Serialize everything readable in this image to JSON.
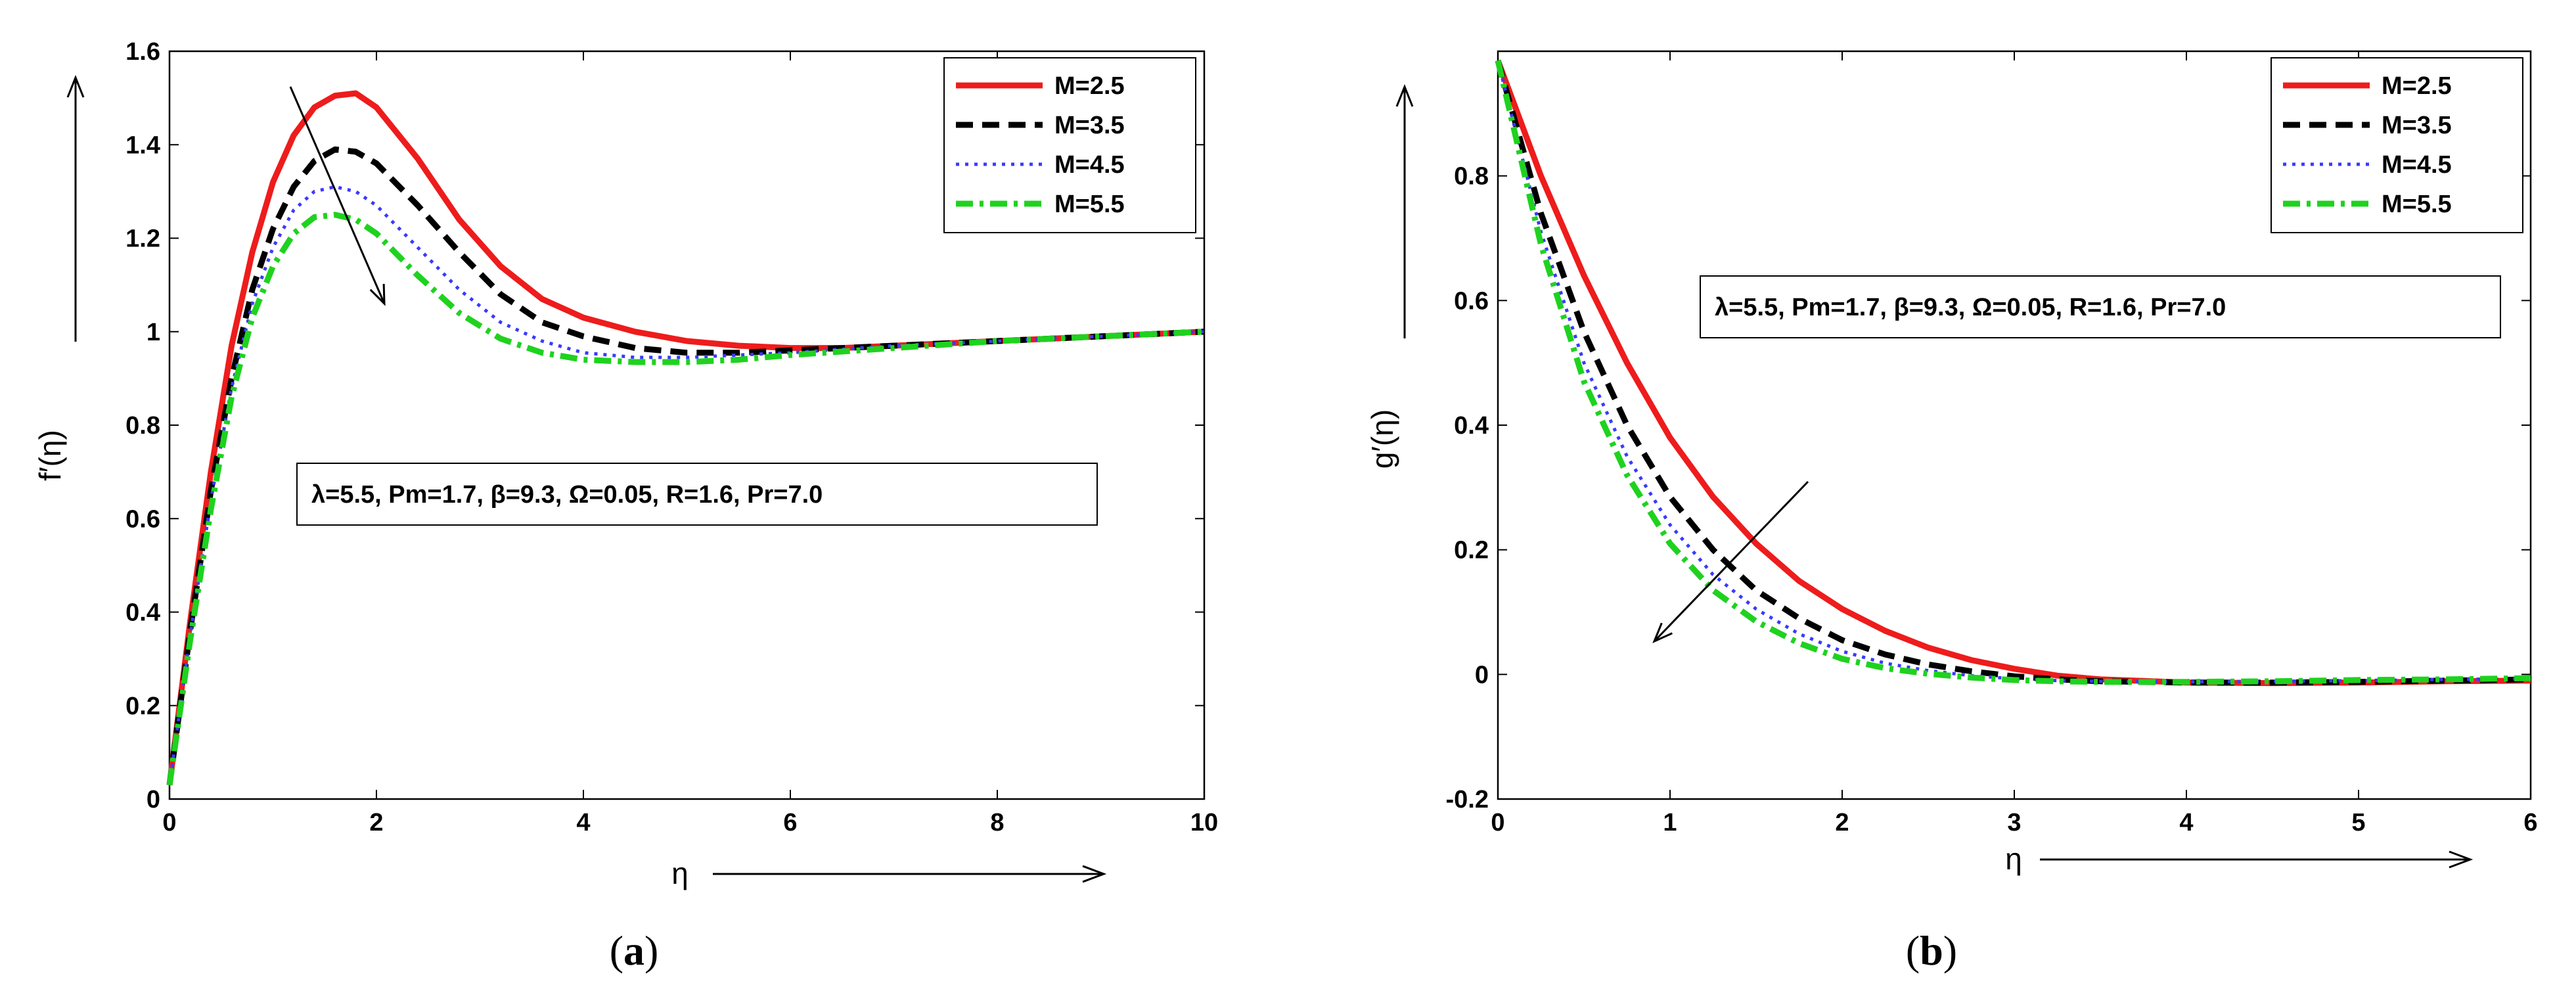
{
  "chart_data": [
    {
      "type": "line",
      "caption_letter": "a",
      "xlabel": "η",
      "ylabel": "f′(η)",
      "xlim": [
        0,
        10
      ],
      "ylim": [
        0,
        1.6
      ],
      "xticks": [
        0,
        2,
        4,
        6,
        8,
        10
      ],
      "yticks": [
        0,
        0.2,
        0.4,
        0.6,
        0.8,
        1,
        1.2,
        1.4,
        1.6
      ],
      "annotation": "λ=5.5, Pm=1.7, β=9.3, Ω=0.05, R=1.6, Pr=7.0",
      "legend_position": "top-right",
      "series": [
        {
          "name": "M=2.5",
          "color": "#ee1c1c",
          "style": "solid",
          "x": [
            0,
            0.2,
            0.4,
            0.6,
            0.8,
            1.0,
            1.2,
            1.4,
            1.6,
            1.8,
            2.0,
            2.4,
            2.8,
            3.2,
            3.6,
            4.0,
            4.5,
            5.0,
            5.5,
            6.0,
            6.5,
            7.0,
            8.0,
            9.0,
            10.0
          ],
          "y": [
            0.03,
            0.38,
            0.7,
            0.97,
            1.17,
            1.32,
            1.42,
            1.48,
            1.505,
            1.51,
            1.48,
            1.37,
            1.24,
            1.14,
            1.07,
            1.03,
            1.0,
            0.98,
            0.97,
            0.965,
            0.965,
            0.97,
            0.98,
            0.99,
            1.0
          ]
        },
        {
          "name": "M=3.5",
          "color": "#000000",
          "style": "dashed",
          "x": [
            0,
            0.2,
            0.4,
            0.6,
            0.8,
            1.0,
            1.2,
            1.4,
            1.6,
            1.8,
            2.0,
            2.4,
            2.8,
            3.2,
            3.6,
            4.0,
            4.5,
            5.0,
            5.5,
            6.0,
            7.0,
            8.0,
            9.0,
            10.0
          ],
          "y": [
            0.03,
            0.36,
            0.66,
            0.9,
            1.09,
            1.22,
            1.31,
            1.365,
            1.39,
            1.385,
            1.36,
            1.27,
            1.17,
            1.08,
            1.02,
            0.99,
            0.965,
            0.955,
            0.955,
            0.96,
            0.97,
            0.98,
            0.99,
            1.0
          ]
        },
        {
          "name": "M=4.5",
          "color": "#3a3aff",
          "style": "dotted",
          "x": [
            0,
            0.2,
            0.4,
            0.6,
            0.8,
            1.0,
            1.2,
            1.4,
            1.6,
            1.8,
            2.0,
            2.4,
            2.8,
            3.2,
            3.6,
            4.0,
            4.5,
            5.0,
            5.5,
            6.0,
            7.0,
            8.0,
            9.0,
            10.0
          ],
          "y": [
            0.03,
            0.35,
            0.64,
            0.88,
            1.06,
            1.18,
            1.26,
            1.3,
            1.31,
            1.3,
            1.27,
            1.18,
            1.09,
            1.02,
            0.98,
            0.955,
            0.945,
            0.945,
            0.95,
            0.955,
            0.97,
            0.98,
            0.99,
            1.0
          ]
        },
        {
          "name": "M=5.5",
          "color": "#1fd21f",
          "style": "dashdot",
          "x": [
            0,
            0.2,
            0.4,
            0.6,
            0.8,
            1.0,
            1.2,
            1.4,
            1.6,
            1.8,
            2.0,
            2.4,
            2.8,
            3.2,
            3.6,
            4.0,
            4.5,
            5.0,
            5.5,
            6.0,
            7.0,
            8.0,
            9.0,
            10.0
          ],
          "y": [
            0.03,
            0.34,
            0.62,
            0.86,
            1.03,
            1.14,
            1.21,
            1.245,
            1.25,
            1.24,
            1.21,
            1.12,
            1.04,
            0.985,
            0.955,
            0.94,
            0.935,
            0.935,
            0.94,
            0.95,
            0.965,
            0.98,
            0.99,
            1.0
          ]
        }
      ]
    },
    {
      "type": "line",
      "caption_letter": "b",
      "xlabel": "η",
      "ylabel": "g′(η)",
      "xlim": [
        0,
        6
      ],
      "ylim": [
        -0.2,
        1.0
      ],
      "xticks": [
        0,
        1,
        2,
        3,
        4,
        5,
        6
      ],
      "yticks": [
        -0.2,
        0,
        0.2,
        0.4,
        0.6,
        0.8
      ],
      "annotation": "λ=5.5, Pm=1.7, β=9.3, Ω=0.05, R=1.6, Pr=7.0",
      "legend_position": "top-right",
      "series": [
        {
          "name": "M=2.5",
          "color": "#ee1c1c",
          "style": "solid",
          "x": [
            0,
            0.25,
            0.5,
            0.75,
            1.0,
            1.25,
            1.5,
            1.75,
            2.0,
            2.25,
            2.5,
            2.75,
            3.0,
            3.25,
            3.5,
            4.0,
            4.5,
            5.0,
            5.5,
            6.0
          ],
          "y": [
            0.985,
            0.8,
            0.64,
            0.5,
            0.38,
            0.285,
            0.21,
            0.15,
            0.105,
            0.07,
            0.043,
            0.023,
            0.009,
            -0.002,
            -0.008,
            -0.013,
            -0.014,
            -0.013,
            -0.011,
            -0.01
          ]
        },
        {
          "name": "M=3.5",
          "color": "#000000",
          "style": "dashed",
          "x": [
            0,
            0.25,
            0.5,
            0.75,
            1.0,
            1.25,
            1.5,
            1.75,
            2.0,
            2.25,
            2.5,
            2.75,
            3.0,
            3.25,
            3.5,
            4.0,
            4.5,
            5.0,
            5.5,
            6.0
          ],
          "y": [
            0.985,
            0.74,
            0.55,
            0.4,
            0.285,
            0.2,
            0.135,
            0.09,
            0.055,
            0.032,
            0.016,
            0.005,
            -0.003,
            -0.008,
            -0.011,
            -0.013,
            -0.013,
            -0.012,
            -0.01,
            -0.008
          ]
        },
        {
          "name": "M=4.5",
          "color": "#3a3aff",
          "style": "dotted",
          "x": [
            0,
            0.25,
            0.5,
            0.75,
            1.0,
            1.25,
            1.5,
            1.75,
            2.0,
            2.25,
            2.5,
            2.75,
            3.0,
            3.25,
            3.5,
            4.0,
            4.5,
            5.0,
            5.5,
            6.0
          ],
          "y": [
            0.985,
            0.71,
            0.5,
            0.35,
            0.24,
            0.16,
            0.105,
            0.065,
            0.037,
            0.018,
            0.006,
            -0.002,
            -0.007,
            -0.01,
            -0.011,
            -0.012,
            -0.011,
            -0.01,
            -0.008,
            -0.007
          ]
        },
        {
          "name": "M=5.5",
          "color": "#1fd21f",
          "style": "dashdot",
          "x": [
            0,
            0.25,
            0.5,
            0.75,
            1.0,
            1.25,
            1.5,
            1.75,
            2.0,
            2.25,
            2.5,
            2.75,
            3.0,
            3.25,
            3.5,
            4.0,
            4.5,
            5.0,
            5.5,
            6.0
          ],
          "y": [
            0.985,
            0.69,
            0.47,
            0.32,
            0.21,
            0.135,
            0.085,
            0.05,
            0.025,
            0.01,
            0.001,
            -0.005,
            -0.009,
            -0.011,
            -0.012,
            -0.012,
            -0.011,
            -0.009,
            -0.008,
            -0.006
          ]
        }
      ]
    }
  ]
}
